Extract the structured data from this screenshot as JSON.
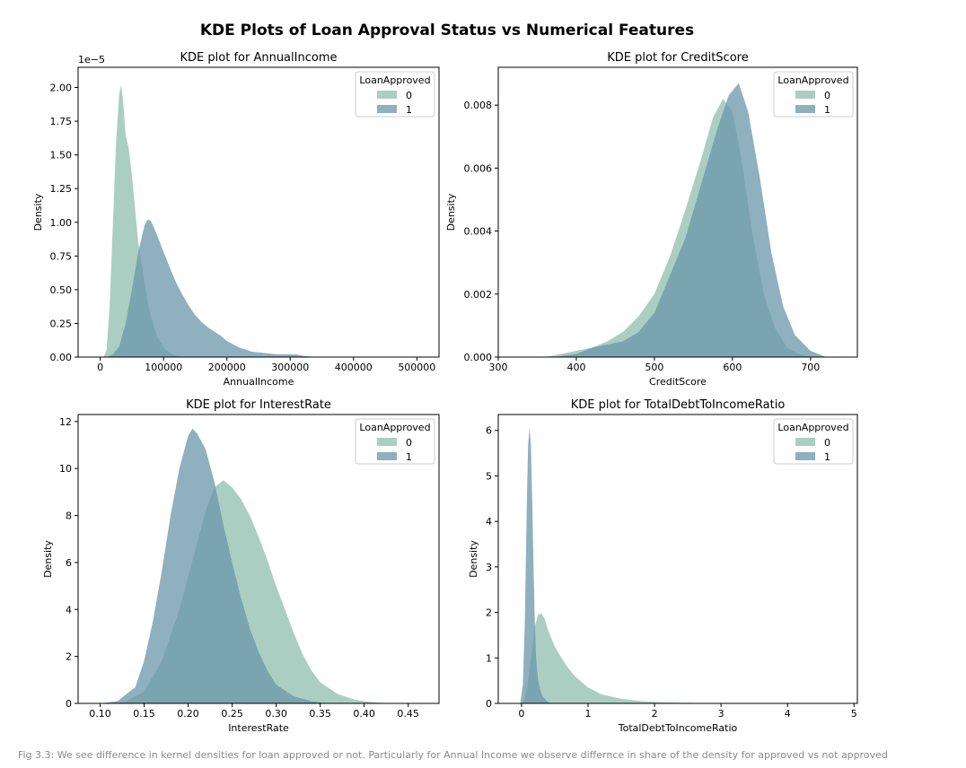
{
  "figure": {
    "title": "KDE Plots of Loan Approval Status vs Numerical Features",
    "caption": "Fig 3.3: We see difference in kernel densities for loan approved or not. Particularly for Annual Income we observe differnce in share of the density for approved vs not approved"
  },
  "colors": {
    "class0": "#8fbdaf",
    "class1": "#6a95a9",
    "axis": "#000000"
  },
  "chart_data": [
    {
      "type": "area",
      "title": "KDE plot for AnnualIncome",
      "xlabel": "AnnualIncome",
      "ylabel": "Density",
      "y_offset_label": "1e−5",
      "xlim": [
        -35000,
        535000
      ],
      "ylim": [
        0,
        2.15
      ],
      "xticks": [
        0,
        100000,
        200000,
        300000,
        400000,
        500000
      ],
      "xtick_labels": [
        "0",
        "100000",
        "200000",
        "300000",
        "400000",
        "500000"
      ],
      "yticks": [
        0,
        0.25,
        0.5,
        0.75,
        1.0,
        1.25,
        1.5,
        1.75,
        2.0
      ],
      "ytick_labels": [
        "0.00",
        "0.25",
        "0.50",
        "0.75",
        "1.00",
        "1.25",
        "1.50",
        "1.75",
        "2.00"
      ],
      "legend": {
        "title": "LoanApproved",
        "position": "top-right",
        "entries": [
          "0",
          "1"
        ]
      },
      "series": [
        {
          "name": "0",
          "x": [
            5000,
            10000,
            15000,
            20000,
            25000,
            30000,
            33000,
            36000,
            40000,
            45000,
            50000,
            55000,
            60000,
            65000,
            70000,
            75000,
            80000,
            90000,
            100000,
            110000,
            120000,
            130000
          ],
          "y": [
            0,
            0.05,
            0.4,
            1.0,
            1.6,
            1.95,
            2.02,
            1.9,
            1.65,
            1.55,
            1.35,
            1.1,
            0.85,
            0.7,
            0.55,
            0.4,
            0.3,
            0.15,
            0.07,
            0.03,
            0.01,
            0
          ]
        },
        {
          "name": "1",
          "x": [
            10000,
            20000,
            30000,
            40000,
            50000,
            60000,
            70000,
            75000,
            80000,
            85000,
            90000,
            100000,
            110000,
            120000,
            130000,
            140000,
            150000,
            160000,
            170000,
            180000,
            190000,
            200000,
            220000,
            240000,
            260000,
            280000,
            300000,
            310000,
            320000,
            330000,
            350000
          ],
          "y": [
            0,
            0.02,
            0.08,
            0.25,
            0.5,
            0.78,
            0.98,
            1.02,
            1.01,
            0.96,
            0.9,
            0.78,
            0.66,
            0.55,
            0.46,
            0.38,
            0.31,
            0.26,
            0.22,
            0.19,
            0.16,
            0.12,
            0.07,
            0.04,
            0.03,
            0.02,
            0.02,
            0.02,
            0.01,
            0.005,
            0
          ]
        }
      ]
    },
    {
      "type": "area",
      "title": "KDE plot for CreditScore",
      "xlabel": "CreditScore",
      "ylabel": "Density",
      "xlim": [
        300,
        760
      ],
      "ylim": [
        0,
        0.0092
      ],
      "xticks": [
        300,
        400,
        500,
        600,
        700
      ],
      "xtick_labels": [
        "300",
        "400",
        "500",
        "600",
        "700"
      ],
      "yticks": [
        0,
        0.002,
        0.004,
        0.006,
        0.008
      ],
      "ytick_labels": [
        "0.000",
        "0.002",
        "0.004",
        "0.006",
        "0.008"
      ],
      "legend": {
        "title": "LoanApproved",
        "position": "top-right",
        "entries": [
          "0",
          "1"
        ]
      },
      "series": [
        {
          "name": "0",
          "x": [
            360,
            380,
            400,
            420,
            440,
            460,
            480,
            500,
            520,
            540,
            560,
            575,
            588,
            600,
            612,
            625,
            640,
            655,
            670,
            685,
            700
          ],
          "y": [
            0,
            0.0001,
            0.0002,
            0.0003,
            0.0005,
            0.0008,
            0.0013,
            0.002,
            0.0032,
            0.0047,
            0.0063,
            0.0076,
            0.0082,
            0.0078,
            0.0062,
            0.004,
            0.002,
            0.0009,
            0.0003,
            0.0001,
            0
          ]
        },
        {
          "name": "1",
          "x": [
            370,
            400,
            420,
            440,
            460,
            480,
            500,
            520,
            540,
            560,
            580,
            595,
            608,
            620,
            635,
            650,
            665,
            680,
            700,
            720
          ],
          "y": [
            0,
            0.0001,
            0.0003,
            0.0004,
            0.0005,
            0.0008,
            0.0014,
            0.0026,
            0.0038,
            0.0055,
            0.0072,
            0.0083,
            0.0087,
            0.0078,
            0.0057,
            0.0033,
            0.0016,
            0.0007,
            0.0002,
            0
          ]
        }
      ]
    },
    {
      "type": "area",
      "title": "KDE plot for InterestRate",
      "xlabel": "InterestRate",
      "ylabel": "Density",
      "xlim": [
        0.075,
        0.485
      ],
      "ylim": [
        0,
        12.3
      ],
      "xticks": [
        0.1,
        0.15,
        0.2,
        0.25,
        0.3,
        0.35,
        0.4,
        0.45
      ],
      "xtick_labels": [
        "0.10",
        "0.15",
        "0.20",
        "0.25",
        "0.30",
        "0.35",
        "0.40",
        "0.45"
      ],
      "yticks": [
        0,
        2,
        4,
        6,
        8,
        10,
        12
      ],
      "ytick_labels": [
        "0",
        "2",
        "4",
        "6",
        "8",
        "10",
        "12"
      ],
      "legend": {
        "title": "LoanApproved",
        "position": "top-right",
        "entries": [
          "0",
          "1"
        ]
      },
      "series": [
        {
          "name": "0",
          "x": [
            0.11,
            0.13,
            0.15,
            0.17,
            0.19,
            0.21,
            0.22,
            0.23,
            0.24,
            0.25,
            0.26,
            0.27,
            0.28,
            0.29,
            0.3,
            0.31,
            0.32,
            0.33,
            0.34,
            0.35,
            0.37,
            0.39,
            0.41,
            0.43
          ],
          "y": [
            0,
            0.1,
            0.5,
            1.8,
            4.0,
            6.8,
            8.2,
            9.2,
            9.5,
            9.2,
            8.7,
            8.0,
            7.1,
            6.1,
            5.0,
            4.0,
            3.0,
            2.1,
            1.4,
            0.9,
            0.4,
            0.15,
            0.05,
            0
          ]
        },
        {
          "name": "1",
          "x": [
            0.1,
            0.12,
            0.14,
            0.15,
            0.16,
            0.17,
            0.18,
            0.19,
            0.2,
            0.205,
            0.21,
            0.22,
            0.23,
            0.24,
            0.25,
            0.26,
            0.27,
            0.28,
            0.29,
            0.3,
            0.32,
            0.34,
            0.36
          ],
          "y": [
            0,
            0.1,
            0.7,
            1.8,
            3.5,
            5.6,
            8.0,
            10.0,
            11.4,
            11.7,
            11.5,
            10.8,
            9.4,
            7.6,
            6.0,
            4.5,
            3.2,
            2.2,
            1.4,
            0.8,
            0.3,
            0.1,
            0
          ]
        }
      ]
    },
    {
      "type": "area",
      "title": "KDE plot for TotalDebtToIncomeRatio",
      "xlabel": "TotalDebtToIncomeRatio",
      "ylabel": "Density",
      "xlim": [
        -0.35,
        5.05
      ],
      "ylim": [
        0,
        6.35
      ],
      "xticks": [
        0,
        1,
        2,
        3,
        4,
        5
      ],
      "xtick_labels": [
        "0",
        "1",
        "2",
        "3",
        "4",
        "5"
      ],
      "yticks": [
        0,
        1,
        2,
        3,
        4,
        5,
        6
      ],
      "ytick_labels": [
        "0",
        "1",
        "2",
        "3",
        "4",
        "5",
        "6"
      ],
      "legend": {
        "title": "LoanApproved",
        "position": "top-right",
        "entries": [
          "0",
          "1"
        ]
      },
      "series": [
        {
          "name": "0",
          "x": [
            0.0,
            0.05,
            0.1,
            0.15,
            0.2,
            0.25,
            0.3,
            0.35,
            0.4,
            0.5,
            0.6,
            0.7,
            0.8,
            1.0,
            1.2,
            1.5,
            1.8,
            2.2,
            2.6,
            3.0
          ],
          "y": [
            0,
            0.1,
            0.5,
            1.1,
            1.7,
            1.95,
            1.98,
            1.85,
            1.6,
            1.25,
            1.0,
            0.78,
            0.6,
            0.35,
            0.2,
            0.1,
            0.05,
            0.02,
            0.01,
            0
          ]
        },
        {
          "name": "1",
          "x": [
            -0.02,
            0.02,
            0.05,
            0.08,
            0.1,
            0.12,
            0.14,
            0.16,
            0.18,
            0.2,
            0.22,
            0.25,
            0.28,
            0.32,
            0.38,
            0.45
          ],
          "y": [
            0,
            0.4,
            1.8,
            4.5,
            5.7,
            6.05,
            5.7,
            4.5,
            3.0,
            1.8,
            1.0,
            0.5,
            0.3,
            0.15,
            0.05,
            0
          ]
        }
      ]
    }
  ]
}
